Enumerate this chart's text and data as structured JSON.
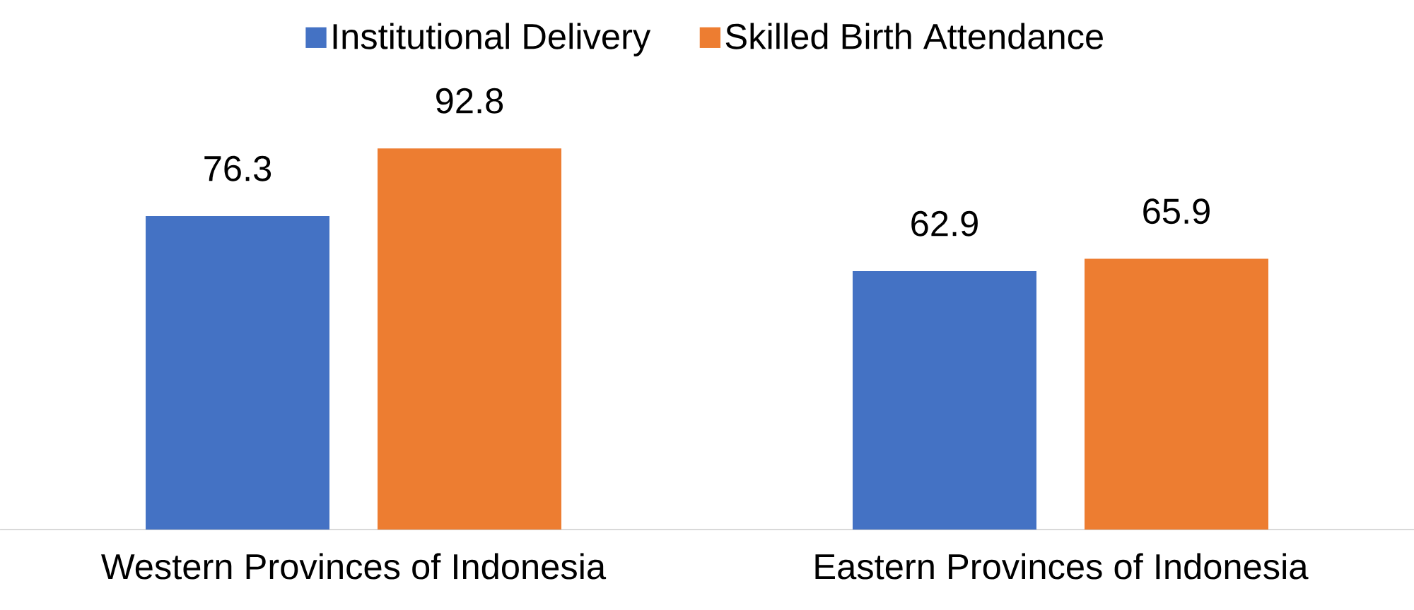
{
  "chart_data": {
    "type": "bar",
    "categories": [
      "Western Provinces of Indonesia",
      "Eastern Provinces of Indonesia"
    ],
    "series": [
      {
        "name": "Institutional Delivery",
        "color": "#4472c4",
        "values": [
          76.3,
          62.9
        ]
      },
      {
        "name": "Skilled Birth Attendance",
        "color": "#ed7d31",
        "values": [
          92.8,
          65.9
        ]
      }
    ],
    "data_labels": true,
    "legend": "top"
  }
}
